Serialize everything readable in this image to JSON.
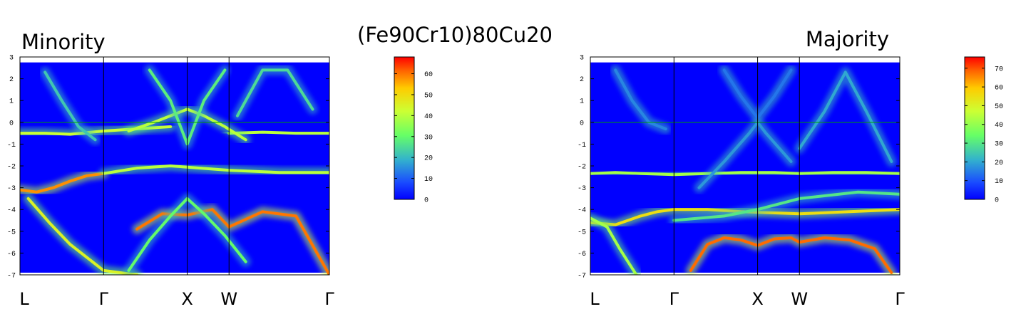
{
  "figure_title": "(Fe90Cr10)80Cu20",
  "chart_data": [
    {
      "type": "heatmap",
      "title": "Minority",
      "xlabel": "",
      "ylabel": "",
      "x_ticks": [
        "L",
        "Γ",
        "X",
        "W",
        "Γ"
      ],
      "x_tick_positions": [
        0,
        1,
        2,
        2.5,
        3.7
      ],
      "xlim": [
        0,
        3.7
      ],
      "ylim": [
        -7,
        3
      ],
      "y_ticks": [
        -7,
        -6,
        -5,
        -4,
        -3,
        -2,
        -1,
        0,
        1,
        2,
        3
      ],
      "fermi_level": 0,
      "colorbar": {
        "min": 0,
        "max": 68,
        "ticks": [
          0,
          10,
          20,
          30,
          40,
          50,
          60
        ]
      },
      "bands": [
        {
          "x": [
            0,
            0.2,
            0.4,
            0.6,
            0.8,
            1.0
          ],
          "y": [
            -3.1,
            -3.2,
            -3.0,
            -2.7,
            -2.45,
            -2.35
          ],
          "intensity": 58
        },
        {
          "x": [
            0.1,
            0.35,
            0.6,
            1.0,
            1.4
          ],
          "y": [
            -3.5,
            -4.6,
            -5.6,
            -6.8,
            -7.0
          ],
          "intensity": 45
        },
        {
          "x": [
            1.0,
            1.4,
            1.8,
            2.5,
            3.1,
            3.7
          ],
          "y": [
            -2.35,
            -2.1,
            -2.0,
            -2.2,
            -2.3,
            -2.3
          ],
          "intensity": 40
        },
        {
          "x": [
            0,
            0.3,
            0.6,
            1.0,
            1.4,
            1.8
          ],
          "y": [
            -0.5,
            -0.5,
            -0.55,
            -0.4,
            -0.3,
            -0.2
          ],
          "intensity": 42
        },
        {
          "x": [
            2.5,
            2.9,
            3.3,
            3.7
          ],
          "y": [
            -0.5,
            -0.45,
            -0.5,
            -0.5
          ],
          "intensity": 40
        },
        {
          "x": [
            1.4,
            1.7,
            2.0,
            2.3,
            2.5,
            2.9,
            3.3,
            3.7
          ],
          "y": [
            -4.9,
            -4.2,
            -4.25,
            -4.0,
            -4.8,
            -4.1,
            -4.3,
            -7.0
          ],
          "intensity": 60
        },
        {
          "x": [
            1.3,
            1.55,
            1.8,
            2.0,
            2.2,
            2.45,
            2.7
          ],
          "y": [
            -6.8,
            -5.4,
            -4.3,
            -3.5,
            -4.2,
            -5.2,
            -6.4
          ],
          "intensity": 30
        },
        {
          "x": [
            1.3,
            1.6,
            1.8,
            2.0,
            2.2,
            2.45,
            2.7
          ],
          "y": [
            -0.4,
            0.0,
            0.3,
            0.6,
            0.3,
            -0.2,
            -0.8
          ],
          "intensity": 40
        },
        {
          "x": [
            1.55,
            1.8,
            2.0,
            2.2,
            2.45
          ],
          "y": [
            2.4,
            1.0,
            -1.0,
            1.0,
            2.4
          ],
          "intensity": 28
        },
        {
          "x": [
            2.6,
            2.9,
            3.2,
            3.5
          ],
          "y": [
            0.3,
            2.4,
            2.4,
            0.6
          ],
          "intensity": 25
        },
        {
          "x": [
            0.3,
            0.5,
            0.7,
            0.9
          ],
          "y": [
            2.3,
            1.0,
            -0.2,
            -0.8
          ],
          "intensity": 22
        }
      ]
    },
    {
      "type": "heatmap",
      "title": "Majority",
      "xlabel": "",
      "ylabel": "",
      "x_ticks": [
        "L",
        "Γ",
        "X",
        "W",
        "Γ"
      ],
      "x_tick_positions": [
        0,
        1,
        2,
        2.5,
        3.7
      ],
      "xlim": [
        0,
        3.7
      ],
      "ylim": [
        -7,
        3
      ],
      "y_ticks": [
        -7,
        -6,
        -5,
        -4,
        -3,
        -2,
        -1,
        0,
        1,
        2,
        3
      ],
      "fermi_level": 0,
      "colorbar": {
        "min": 0,
        "max": 76,
        "ticks": [
          0,
          10,
          20,
          30,
          40,
          50,
          60,
          70
        ]
      },
      "bands": [
        {
          "x": [
            0,
            0.3,
            0.6,
            1.0,
            1.4,
            1.8,
            2.2,
            2.5,
            2.9,
            3.3,
            3.7
          ],
          "y": [
            -2.35,
            -2.3,
            -2.35,
            -2.4,
            -2.35,
            -2.3,
            -2.3,
            -2.35,
            -2.3,
            -2.3,
            -2.35
          ],
          "intensity": 42
        },
        {
          "x": [
            0,
            0.3,
            0.6,
            0.8,
            1.0,
            1.4,
            1.8,
            2.5,
            3.1,
            3.7
          ],
          "y": [
            -4.6,
            -4.7,
            -4.3,
            -4.1,
            -4.0,
            -4.0,
            -4.1,
            -4.2,
            -4.1,
            -4.0
          ],
          "intensity": 55
        },
        {
          "x": [
            0,
            0.2,
            0.35,
            0.55
          ],
          "y": [
            -4.4,
            -4.8,
            -5.8,
            -7.0
          ],
          "intensity": 42
        },
        {
          "x": [
            1.2,
            1.4,
            1.6,
            1.8,
            2.0,
            2.2,
            2.4,
            2.5,
            2.8,
            3.1,
            3.4,
            3.6
          ],
          "y": [
            -6.8,
            -5.6,
            -5.3,
            -5.4,
            -5.65,
            -5.35,
            -5.3,
            -5.5,
            -5.3,
            -5.4,
            -5.8,
            -6.9
          ],
          "intensity": 68
        },
        {
          "x": [
            1.3,
            1.6,
            1.9,
            2.0,
            2.1,
            2.4
          ],
          "y": [
            -3.0,
            -1.8,
            -0.5,
            0.0,
            -0.5,
            -1.8
          ],
          "intensity": 18
        },
        {
          "x": [
            2.5,
            2.8,
            3.05,
            3.3,
            3.6
          ],
          "y": [
            -1.2,
            0.5,
            2.3,
            0.5,
            -1.8
          ],
          "intensity": 20
        },
        {
          "x": [
            0.3,
            0.5,
            0.7,
            0.9
          ],
          "y": [
            2.4,
            1.0,
            0.0,
            -0.3
          ],
          "intensity": 16
        },
        {
          "x": [
            1.6,
            1.8,
            2.0,
            2.2,
            2.4
          ],
          "y": [
            2.4,
            1.2,
            0.2,
            1.2,
            2.4
          ],
          "intensity": 14
        },
        {
          "x": [
            1.0,
            1.6,
            2.0,
            2.5,
            3.2,
            3.7
          ],
          "y": [
            -4.5,
            -4.3,
            -4.0,
            -3.5,
            -3.2,
            -3.3
          ],
          "intensity": 30
        }
      ]
    }
  ]
}
